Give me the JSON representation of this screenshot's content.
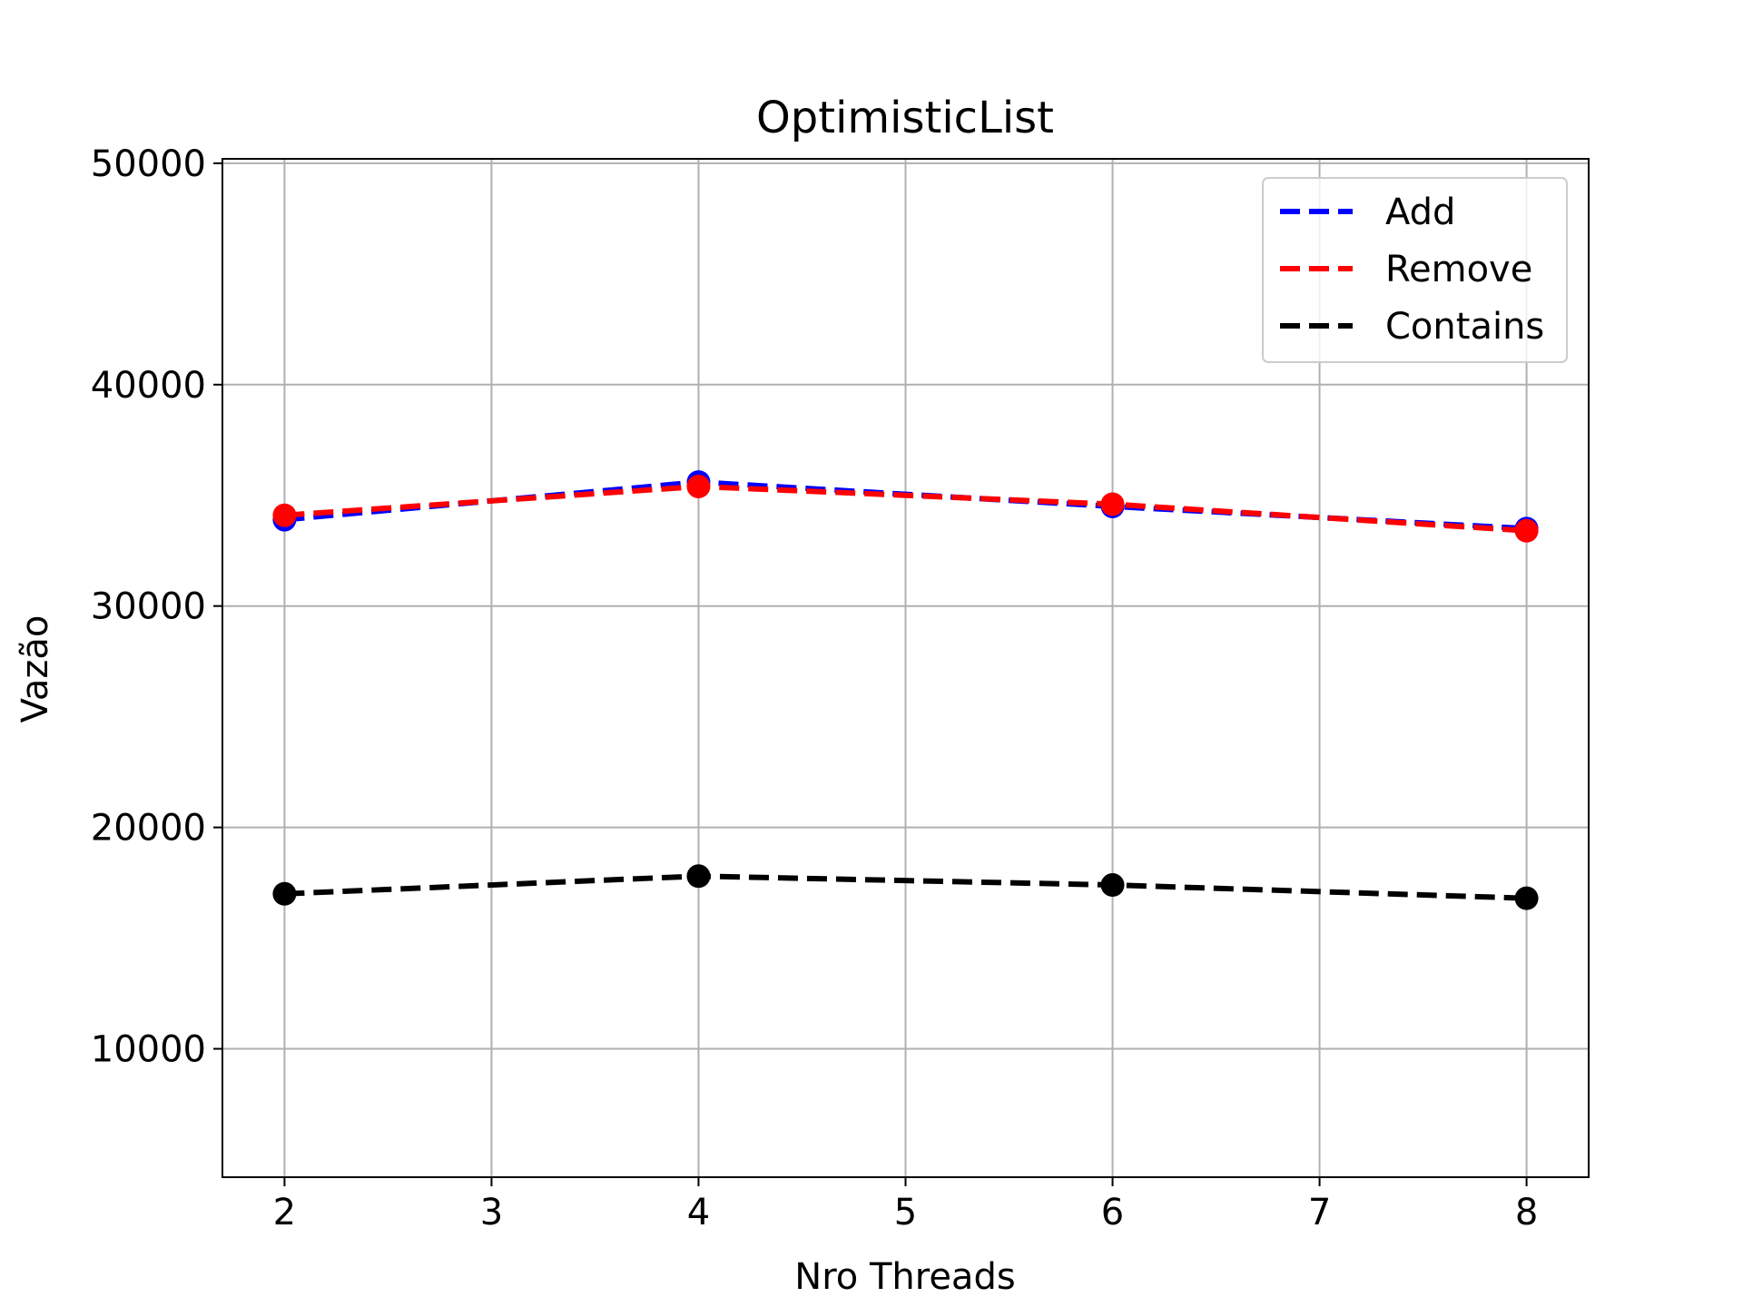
{
  "chart_data": {
    "type": "line",
    "title": "OptimisticList",
    "xlabel": "Nro Threads",
    "ylabel": "Vazão",
    "x": [
      2,
      4,
      6,
      8
    ],
    "xlim": [
      1.7,
      8.3
    ],
    "ylim": [
      4200,
      50200
    ],
    "xticks": [
      2,
      3,
      4,
      5,
      6,
      7,
      8
    ],
    "yticks": [
      10000,
      20000,
      30000,
      40000,
      50000
    ],
    "grid": true,
    "legend_position": "top-right",
    "series": [
      {
        "name": "Add",
        "values": [
          33900,
          35600,
          34500,
          33500
        ],
        "color": "#0000ff",
        "line_style": "dashed",
        "marker": "circle"
      },
      {
        "name": "Remove",
        "values": [
          34100,
          35400,
          34600,
          33400
        ],
        "color": "#ff0000",
        "line_style": "dashed",
        "marker": "circle"
      },
      {
        "name": "Contains",
        "values": [
          17000,
          17800,
          17400,
          16800
        ],
        "color": "#000000",
        "line_style": "dashed",
        "marker": "circle"
      }
    ]
  }
}
